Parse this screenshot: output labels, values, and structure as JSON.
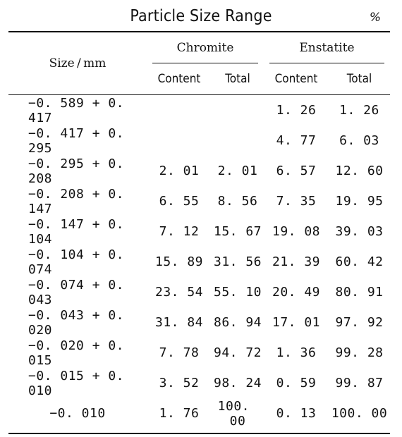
{
  "title": "Particle Size Range",
  "unit": "%",
  "header": {
    "size": "Size / mm",
    "groups": [
      "Chromite",
      "Enstatite"
    ],
    "sub": [
      "Content",
      "Total",
      "Content",
      "Total"
    ]
  },
  "rows": [
    {
      "size": "−0. 589 + 0. 417",
      "c_content": "",
      "c_total": "",
      "e_content": "1. 26",
      "e_total": "1. 26"
    },
    {
      "size": "−0. 417 + 0. 295",
      "c_content": "",
      "c_total": "",
      "e_content": "4. 77",
      "e_total": "6. 03"
    },
    {
      "size": "−0. 295 + 0. 208",
      "c_content": "2. 01",
      "c_total": "2. 01",
      "e_content": "6. 57",
      "e_total": "12. 60"
    },
    {
      "size": "−0. 208 + 0. 147",
      "c_content": "6. 55",
      "c_total": "8. 56",
      "e_content": "7. 35",
      "e_total": "19. 95"
    },
    {
      "size": "−0. 147 + 0. 104",
      "c_content": "7. 12",
      "c_total": "15. 67",
      "e_content": "19. 08",
      "e_total": "39. 03"
    },
    {
      "size": "−0. 104 + 0. 074",
      "c_content": "15. 89",
      "c_total": "31. 56",
      "e_content": "21. 39",
      "e_total": "60. 42"
    },
    {
      "size": "−0. 074 + 0. 043",
      "c_content": "23. 54",
      "c_total": "55. 10",
      "e_content": "20. 49",
      "e_total": "80. 91"
    },
    {
      "size": "−0. 043 + 0. 020",
      "c_content": "31. 84",
      "c_total": "86. 94",
      "e_content": "17. 01",
      "e_total": "97. 92"
    },
    {
      "size": "−0. 020 + 0. 015",
      "c_content": "7. 78",
      "c_total": "94. 72",
      "e_content": "1. 36",
      "e_total": "99. 28"
    },
    {
      "size": "−0. 015 + 0. 010",
      "c_content": "3. 52",
      "c_total": "98. 24",
      "e_content": "0. 59",
      "e_total": "99. 87"
    },
    {
      "size": "−0. 010",
      "c_content": "1. 76",
      "c_total": "100. 00",
      "e_content": "0. 13",
      "e_total": "100. 00"
    }
  ]
}
